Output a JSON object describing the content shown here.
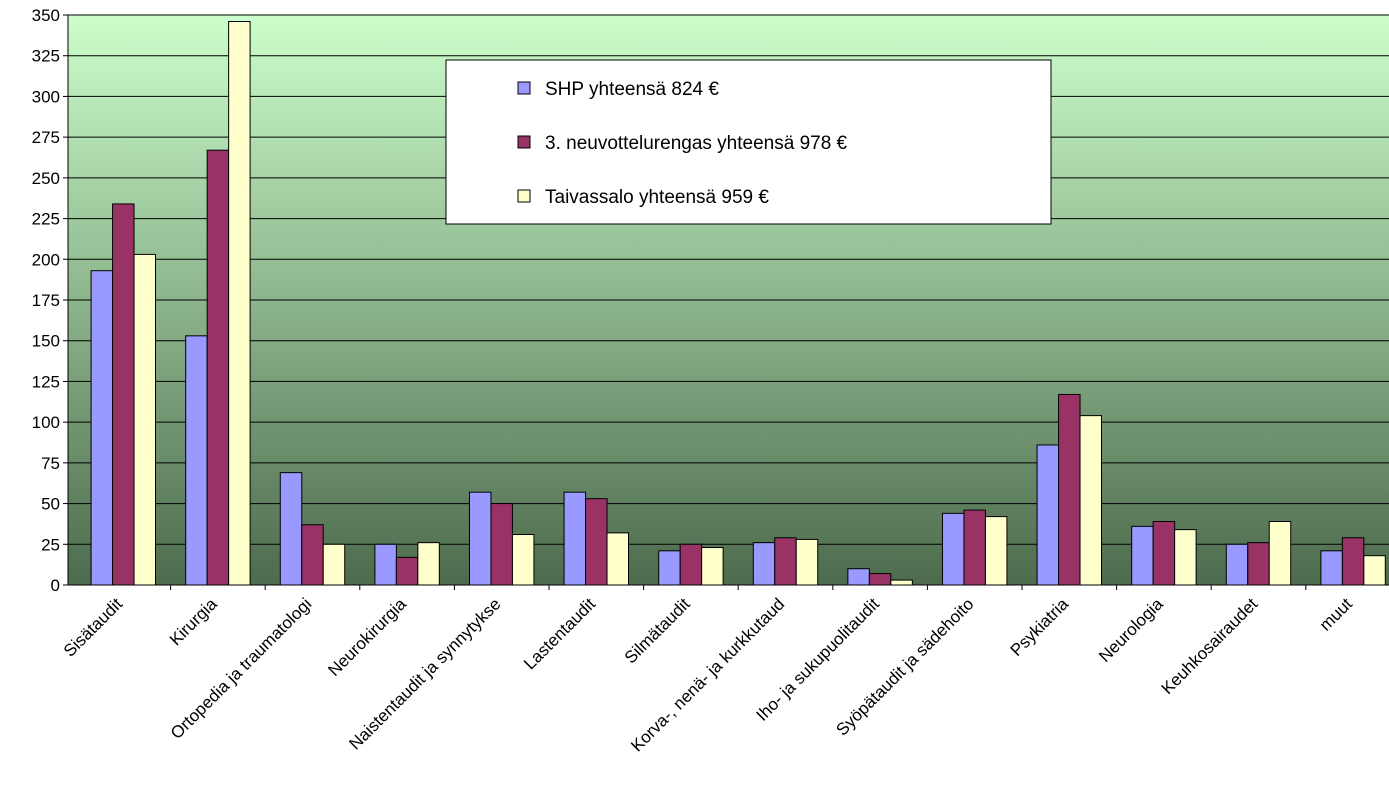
{
  "chart_data": {
    "type": "bar",
    "categories": [
      "Sisätaudit",
      "Kirurgia",
      "Ortopedia ja traumatologi",
      "Neurokirurgia",
      "Naistentaudit ja synnytykse",
      "Lastentaudit",
      "Silmätaudit",
      "Korva-, nenä- ja kurkkutaud",
      "Iho- ja sukupuolitaudit",
      "Syöpätaudit ja sädehoito",
      "Psykiatria",
      "Neurologia",
      "Keuhkosairaudet",
      "muut"
    ],
    "series": [
      {
        "name": "SHP yhteensä 824 €",
        "color": "#9999ff",
        "values": [
          193,
          153,
          69,
          25,
          57,
          57,
          21,
          26,
          10,
          44,
          86,
          36,
          25,
          21
        ]
      },
      {
        "name": "3. neuvottelurengas yhteensä 978 €",
        "color": "#993366",
        "values": [
          234,
          267,
          37,
          17,
          50,
          53,
          25,
          29,
          7,
          46,
          117,
          39,
          26,
          29
        ]
      },
      {
        "name": "Taivassalo yhteensä 959 €",
        "color": "#ffffcc",
        "values": [
          203,
          346,
          25,
          26,
          31,
          32,
          23,
          28,
          3,
          42,
          104,
          34,
          39,
          18
        ]
      }
    ],
    "ylim": [
      0,
      350
    ],
    "yticks": [
      0,
      25,
      50,
      75,
      100,
      125,
      150,
      175,
      200,
      225,
      250,
      275,
      300,
      325,
      350
    ],
    "grid": true
  }
}
